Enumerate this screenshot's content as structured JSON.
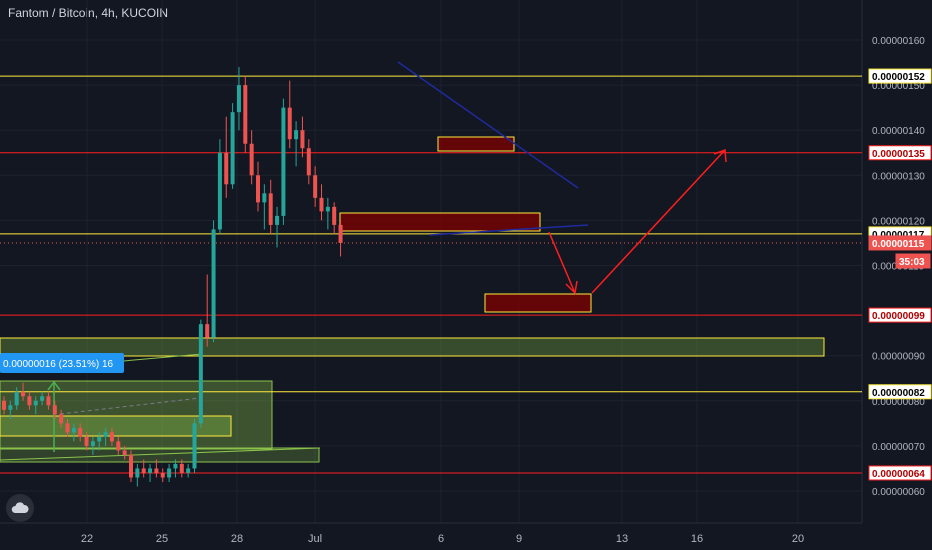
{
  "header": {
    "title": "Fantom / Bitcoin, 4h, KUCOIN"
  },
  "colors": {
    "bg": "#131722",
    "axis_text": "#b2b5be",
    "grid": "#1e222d",
    "up": "#26a69a",
    "down": "#ef5350",
    "yellow": "#ffeb3b",
    "red": "#ff1e1e",
    "green": "#8bc34a",
    "blue": "#1f2a9e"
  },
  "chart_data": {
    "type": "candlestick",
    "title": "Fantom / Bitcoin, 4h, KUCOIN",
    "x_tick_labels": [
      "22",
      "25",
      "28",
      "Jul",
      "6",
      "9",
      "13",
      "16",
      "20"
    ],
    "y_tick_labels": [
      "0.00000160",
      "0.00000150",
      "0.00000140",
      "0.00000130",
      "0.00000120",
      "0.00000110",
      "0.00000090",
      "0.00000080",
      "0.00000070",
      "0.00000060"
    ],
    "ylim": [
      5.5e-07,
      1.65e-06
    ],
    "price_labels": [
      {
        "text": "0.00000152",
        "value": 1.52e-06,
        "style": "yellow"
      },
      {
        "text": "0.00000135",
        "value": 1.35e-06,
        "style": "red"
      },
      {
        "text": "0.00000117",
        "value": 1.17e-06,
        "style": "yellow"
      },
      {
        "text": "0.00000115",
        "value": 1.15e-06,
        "style": "current"
      },
      {
        "text": "35:03",
        "value": 1.11e-06,
        "style": "countdown"
      },
      {
        "text": "0.00000099",
        "value": 9.9e-07,
        "style": "red"
      },
      {
        "text": "0.00000082",
        "value": 8.2e-07,
        "style": "yellow"
      },
      {
        "text": "0.00000064",
        "value": 6.4e-07,
        "style": "red"
      }
    ],
    "horizontal_levels": [
      {
        "value": 1.52e-06,
        "color": "yellow"
      },
      {
        "value": 1.35e-06,
        "color": "red"
      },
      {
        "value": 1.17e-06,
        "color": "yellow"
      },
      {
        "value": 9.9e-07,
        "color": "red"
      },
      {
        "value": 8.2e-07,
        "color": "yellow"
      },
      {
        "value": 6.4e-07,
        "color": "red"
      }
    ],
    "measure_label": "0.00000016 (23.51%) 16",
    "series": [
      {
        "kind": "ohlc",
        "values": [
          [
            8e-07,
            8.1e-07,
            7.7e-07,
            7.8e-07
          ],
          [
            7.8e-07,
            8e-07,
            7.6e-07,
            7.9e-07
          ],
          [
            7.9e-07,
            8.3e-07,
            7.8e-07,
            8.2e-07
          ],
          [
            8.2e-07,
            8.4e-07,
            8e-07,
            8.1e-07
          ],
          [
            8.1e-07,
            8.2e-07,
            7.8e-07,
            7.9e-07
          ],
          [
            7.9e-07,
            8.1e-07,
            7.7e-07,
            8e-07
          ],
          [
            8e-07,
            8.2e-07,
            7.9e-07,
            8.1e-07
          ],
          [
            8.1e-07,
            8.2e-07,
            7.8e-07,
            7.9e-07
          ],
          [
            7.9e-07,
            8e-07,
            7.6e-07,
            7.7e-07
          ],
          [
            7.7e-07,
            7.8e-07,
            7.4e-07,
            7.5e-07
          ],
          [
            7.5e-07,
            7.6e-07,
            7.2e-07,
            7.3e-07
          ],
          [
            7.3e-07,
            7.5e-07,
            7.1e-07,
            7.4e-07
          ],
          [
            7.4e-07,
            7.5e-07,
            7.1e-07,
            7.2e-07
          ],
          [
            7.2e-07,
            7.3e-07,
            6.9e-07,
            7e-07
          ],
          [
            7e-07,
            7.2e-07,
            6.8e-07,
            7.1e-07
          ],
          [
            7.1e-07,
            7.3e-07,
            6.9e-07,
            7.2e-07
          ],
          [
            7.2e-07,
            7.4e-07,
            7e-07,
            7.3e-07
          ],
          [
            7.3e-07,
            7.4e-07,
            7e-07,
            7.1e-07
          ],
          [
            7.1e-07,
            7.2e-07,
            6.8e-07,
            6.9e-07
          ],
          [
            6.9e-07,
            7e-07,
            6.7e-07,
            6.8e-07
          ],
          [
            6.8e-07,
            6.9e-07,
            6.2e-07,
            6.3e-07
          ],
          [
            6.3e-07,
            6.6e-07,
            6.1e-07,
            6.5e-07
          ],
          [
            6.5e-07,
            6.7e-07,
            6.3e-07,
            6.4e-07
          ],
          [
            6.4e-07,
            6.6e-07,
            6.2e-07,
            6.5e-07
          ],
          [
            6.5e-07,
            6.7e-07,
            6.3e-07,
            6.4e-07
          ],
          [
            6.4e-07,
            6.5e-07,
            6.2e-07,
            6.3e-07
          ],
          [
            6.3e-07,
            6.6e-07,
            6.2e-07,
            6.5e-07
          ],
          [
            6.5e-07,
            6.7e-07,
            6.3e-07,
            6.6e-07
          ],
          [
            6.6e-07,
            6.7e-07,
            6.3e-07,
            6.4e-07
          ],
          [
            6.4e-07,
            6.6e-07,
            6.3e-07,
            6.5e-07
          ],
          [
            6.5e-07,
            7.6e-07,
            6.4e-07,
            7.5e-07
          ],
          [
            7.5e-07,
            9.8e-07,
            7.4e-07,
            9.7e-07
          ],
          [
            9.7e-07,
            1.08e-06,
            9.2e-07,
            9.4e-07
          ],
          [
            9.4e-07,
            1.2e-06,
            9.3e-07,
            1.18e-06
          ],
          [
            1.18e-06,
            1.38e-06,
            1.17e-06,
            1.35e-06
          ],
          [
            1.35e-06,
            1.43e-06,
            1.25e-06,
            1.28e-06
          ],
          [
            1.28e-06,
            1.46e-06,
            1.27e-06,
            1.44e-06
          ],
          [
            1.44e-06,
            1.54e-06,
            1.4e-06,
            1.5e-06
          ],
          [
            1.5e-06,
            1.52e-06,
            1.35e-06,
            1.37e-06
          ],
          [
            1.37e-06,
            1.4e-06,
            1.28e-06,
            1.3e-06
          ],
          [
            1.3e-06,
            1.33e-06,
            1.22e-06,
            1.24e-06
          ],
          [
            1.24e-06,
            1.28e-06,
            1.18e-06,
            1.26e-06
          ],
          [
            1.26e-06,
            1.29e-06,
            1.17e-06,
            1.19e-06
          ],
          [
            1.19e-06,
            1.23e-06,
            1.14e-06,
            1.21e-06
          ],
          [
            1.21e-06,
            1.47e-06,
            1.19e-06,
            1.45e-06
          ],
          [
            1.45e-06,
            1.51e-06,
            1.36e-06,
            1.38e-06
          ],
          [
            1.38e-06,
            1.42e-06,
            1.32e-06,
            1.4e-06
          ],
          [
            1.4e-06,
            1.43e-06,
            1.34e-06,
            1.36e-06
          ],
          [
            1.36e-06,
            1.38e-06,
            1.28e-06,
            1.3e-06
          ],
          [
            1.3e-06,
            1.32e-06,
            1.23e-06,
            1.25e-06
          ],
          [
            1.25e-06,
            1.28e-06,
            1.2e-06,
            1.22e-06
          ],
          [
            1.22e-06,
            1.25e-06,
            1.18e-06,
            1.23e-06
          ],
          [
            1.23e-06,
            1.24e-06,
            1.17e-06,
            1.19e-06
          ],
          [
            1.19e-06,
            1.2e-06,
            1.12e-06,
            1.15e-06
          ]
        ]
      }
    ]
  }
}
